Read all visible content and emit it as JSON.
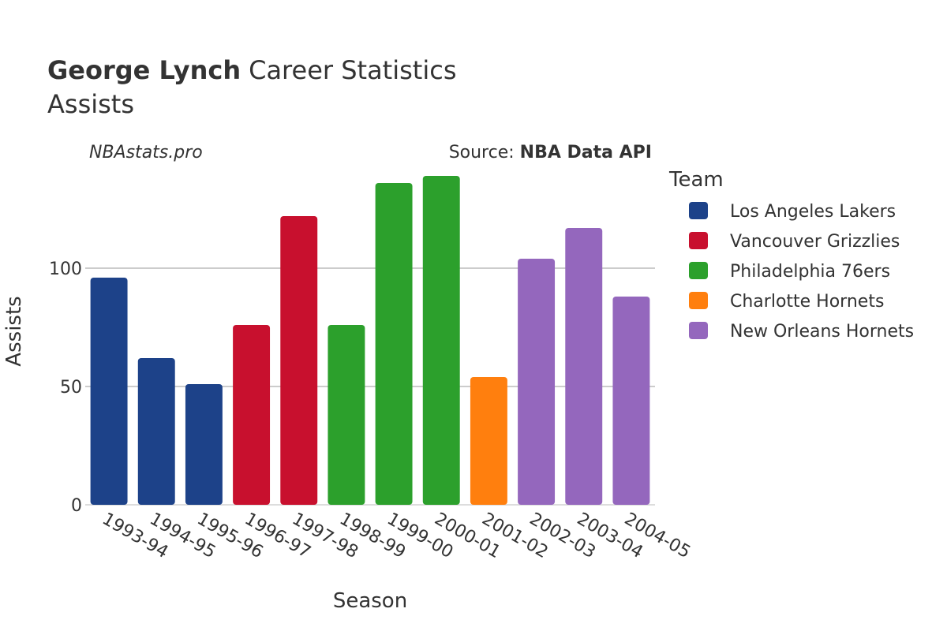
{
  "chart_data": {
    "type": "bar",
    "title_bold": "George Lynch",
    "title_rest": "Career Statistics",
    "subtitle": "Assists",
    "watermark": "NBAstats.pro",
    "source_prefix": "Source: ",
    "source_name": "NBA Data API",
    "xlabel": "Season",
    "ylabel": "Assists",
    "ylim": [
      0,
      140
    ],
    "yticks": [
      0,
      50,
      100
    ],
    "categories": [
      "1993-94",
      "1994-95",
      "1995-96",
      "1996-97",
      "1997-98",
      "1998-99",
      "1999-00",
      "2000-01",
      "2001-02",
      "2002-03",
      "2003-04",
      "2004-05"
    ],
    "values": [
      96,
      62,
      51,
      76,
      122,
      76,
      136,
      139,
      54,
      104,
      117,
      88
    ],
    "teams": [
      "Los Angeles Lakers",
      "Los Angeles Lakers",
      "Los Angeles Lakers",
      "Vancouver Grizzlies",
      "Vancouver Grizzlies",
      "Philadelphia 76ers",
      "Philadelphia 76ers",
      "Philadelphia 76ers",
      "Charlotte Hornets",
      "New Orleans Hornets",
      "New Orleans Hornets",
      "New Orleans Hornets"
    ],
    "legend_title": "Team",
    "legend": [
      {
        "name": "Los Angeles Lakers",
        "color": "#1d4289"
      },
      {
        "name": "Vancouver Grizzlies",
        "color": "#c8102e"
      },
      {
        "name": "Philadelphia 76ers",
        "color": "#2ca02c"
      },
      {
        "name": "Charlotte Hornets",
        "color": "#ff7f0e"
      },
      {
        "name": "New Orleans Hornets",
        "color": "#9467bd"
      }
    ]
  }
}
